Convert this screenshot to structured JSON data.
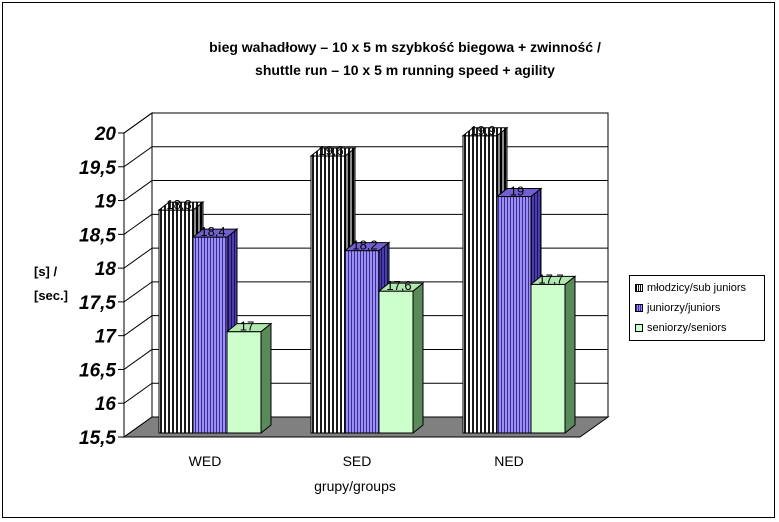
{
  "chart_data": {
    "type": "bar",
    "title": "bieg wahadłowy  – 10 x 5 m  szybkość biegowa + zwinność /",
    "subtitle": "shuttle run – 10 x 5 m running speed + agility",
    "ylabel": "[s] /\n[sec.]",
    "ylabel_lines": [
      "[s] /",
      "[sec.]"
    ],
    "xlabel": "grupy/groups",
    "categories": [
      "WED",
      "SED",
      "NED"
    ],
    "ylim": [
      15.5,
      20
    ],
    "yticks": [
      "15,5",
      "16",
      "16,5",
      "17",
      "17,5",
      "18",
      "18,5",
      "19",
      "19,5",
      "20"
    ],
    "ytick_values": [
      15.5,
      16,
      16.5,
      17,
      17.5,
      18,
      18.5,
      19,
      19.5,
      20
    ],
    "series": [
      {
        "name": "młodzicy/sub juniors",
        "values": [
          18.8,
          19.6,
          19.9
        ],
        "labels": [
          "18,8",
          "19,6",
          "19,9"
        ],
        "color": "#3a3a3a",
        "pattern": "vertical-stripes"
      },
      {
        "name": "juniorzy/juniors",
        "values": [
          18.4,
          18.2,
          19
        ],
        "labels": [
          "18,4",
          "18,2",
          "19"
        ],
        "color": "#7b6fe0",
        "pattern": "vertical-stripes"
      },
      {
        "name": "seniorzy/seniors",
        "values": [
          17,
          17.6,
          17.7
        ],
        "labels": [
          "17",
          "17,6",
          "17,7"
        ],
        "color": "#ccffcc",
        "pattern": "solid"
      }
    ],
    "grid": true,
    "legend_position": "right",
    "style": "3d-column"
  }
}
